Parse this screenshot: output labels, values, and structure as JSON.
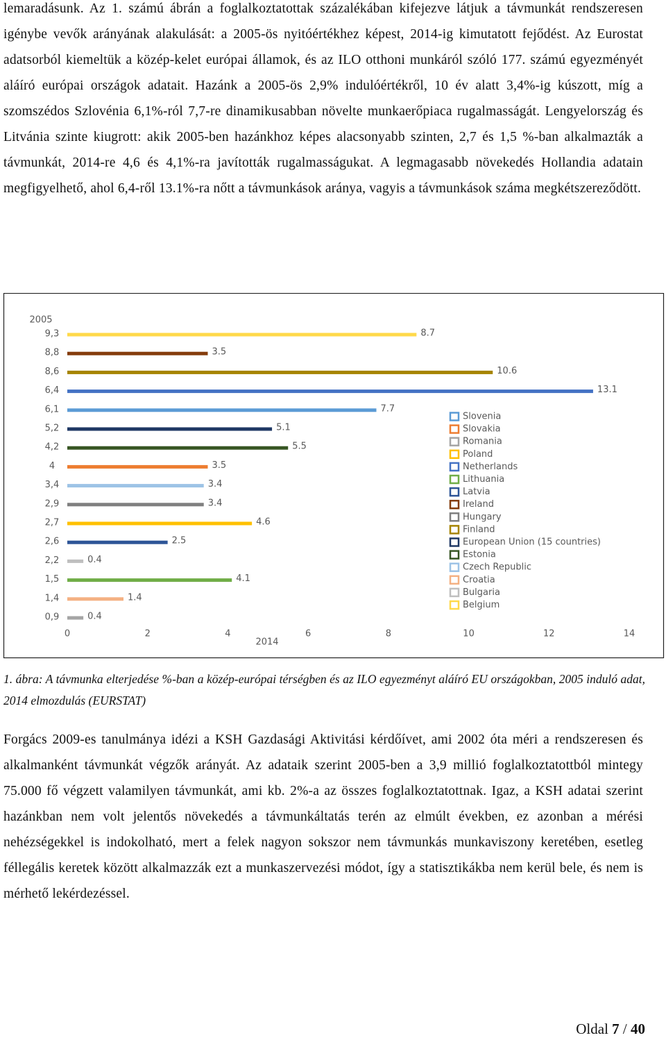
{
  "paragraphs": [
    "lemaradásunk. Az 1. számú ábrán a foglalkoztatottak százalékában kifejezve látjuk a távmunkát rendszeresen igénybe vevők arányának alakulását: a 2005-ös nyitóértékhez képest, 2014-ig kimutatott fejődést. Az Eurostat adatsorból kiemeltük a közép-kelet európai államok, és az ILO otthoni munkáról szóló 177. számú egyezményét aláíró európai országok adatait. Hazánk a 2005-ös 2,9% indulóértékről, 10 év alatt 3,4%-ig kúszott, míg a szomszédos Szlovénia 6,1%-ról 7,7-re dinamikusabban növelte munkaerőpiaca rugalmasságát. Lengyelország és Litvánia szinte kiugrott: akik 2005-ben hazánkhoz képes alacsonyabb szinten, 2,7 és 1,5 %-ban alkalmazták a távmunkát, 2014-re 4,6 és 4,1%-ra javították rugalmasságukat. A legmagasabb növekedés Hollandia adatain megfigyelhető, ahol 6,4-ről 13.1%-ra nőtt a távmunkások aránya, vagyis a távmunkások száma megkétszereződött.",
    "Forgács 2009-es tanulmánya idézi a KSH Gazdasági Aktivitási kérdőívet, ami 2002 óta méri a rendszeresen és alkalmanként távmunkát végzők arányát. Az adataik szerint 2005-ben a 3,9 millió foglalkoztatottból mintegy 75.000 fő végzett valamilyen távmunkát, ami kb. 2%-a az összes foglalkoztatottnak. Igaz, a KSH adatai szerint hazánkban nem volt jelentős növekedés a távmunkáltatás terén az elmúlt években, ez azonban a mérési nehézségekkel is indokolható, mert a felek nagyon sokszor nem távmunkás munkaviszony keretében, esetleg féllegális keretek között alkalmazzák ezt a munkaszervezési módot, így a statisztikákba nem kerül bele, és nem is mérhető lekérdezéssel."
  ],
  "chart_data": {
    "type": "barh",
    "ylabel": "2005",
    "xlabel": "2014",
    "categories": [
      "9,3",
      "8,8",
      "8,6",
      "6,4",
      "6,1",
      "5,2",
      "4,2",
      "4",
      "3,4",
      "2,9",
      "2,7",
      "2,6",
      "2,2",
      "1,5",
      "1,4",
      "0,9"
    ],
    "values": [
      8.7,
      3.5,
      10.6,
      13.1,
      7.7,
      5.1,
      5.5,
      3.5,
      3.4,
      3.4,
      4.6,
      2.5,
      0.4,
      4.1,
      1.4,
      0.4
    ],
    "colors": [
      "#ffd94a",
      "#843c0c",
      "#a68400",
      "#4472c4",
      "#5b9bd5",
      "#1f3864",
      "#375623",
      "#ed7d31",
      "#9dc3e6",
      "#7f7f7f",
      "#ffc000",
      "#2e5597",
      "#bfbfbf",
      "#70ad47",
      "#f4b183",
      "#a5a5a5"
    ],
    "xlim": [
      0,
      14
    ],
    "xticks": [
      0,
      2,
      4,
      6,
      8,
      10,
      12,
      14
    ],
    "legend": [
      {
        "name": "Slovenia",
        "color": "#5b9bd5"
      },
      {
        "name": "Slovakia",
        "color": "#ed7d31"
      },
      {
        "name": "Romania",
        "color": "#a5a5a5"
      },
      {
        "name": "Poland",
        "color": "#ffc000"
      },
      {
        "name": "Netherlands",
        "color": "#4472c4"
      },
      {
        "name": "Lithuania",
        "color": "#70ad47"
      },
      {
        "name": "Latvia",
        "color": "#2e5597"
      },
      {
        "name": "Ireland",
        "color": "#843c0c"
      },
      {
        "name": "Hungary",
        "color": "#7f7f7f"
      },
      {
        "name": "Finland",
        "color": "#a68400"
      },
      {
        "name": "European Union (15 countries)",
        "color": "#1f3864"
      },
      {
        "name": "Estonia",
        "color": "#375623"
      },
      {
        "name": "Czech Republic",
        "color": "#9dc3e6"
      },
      {
        "name": "Croatia",
        "color": "#f4b183"
      },
      {
        "name": "Bulgaria",
        "color": "#bfbfbf"
      },
      {
        "name": "Belgium",
        "color": "#ffd94a"
      }
    ]
  },
  "figure_caption": "1. ábra: A távmunka elterjedése %-ban a közép-európai térségben és az ILO egyezményt aláíró EU országokban, 2005 induló adat, 2014 elmozdulás (EURSTAT)",
  "footer": {
    "label": "Oldal",
    "current": "7",
    "separator": "/",
    "total": "40"
  }
}
